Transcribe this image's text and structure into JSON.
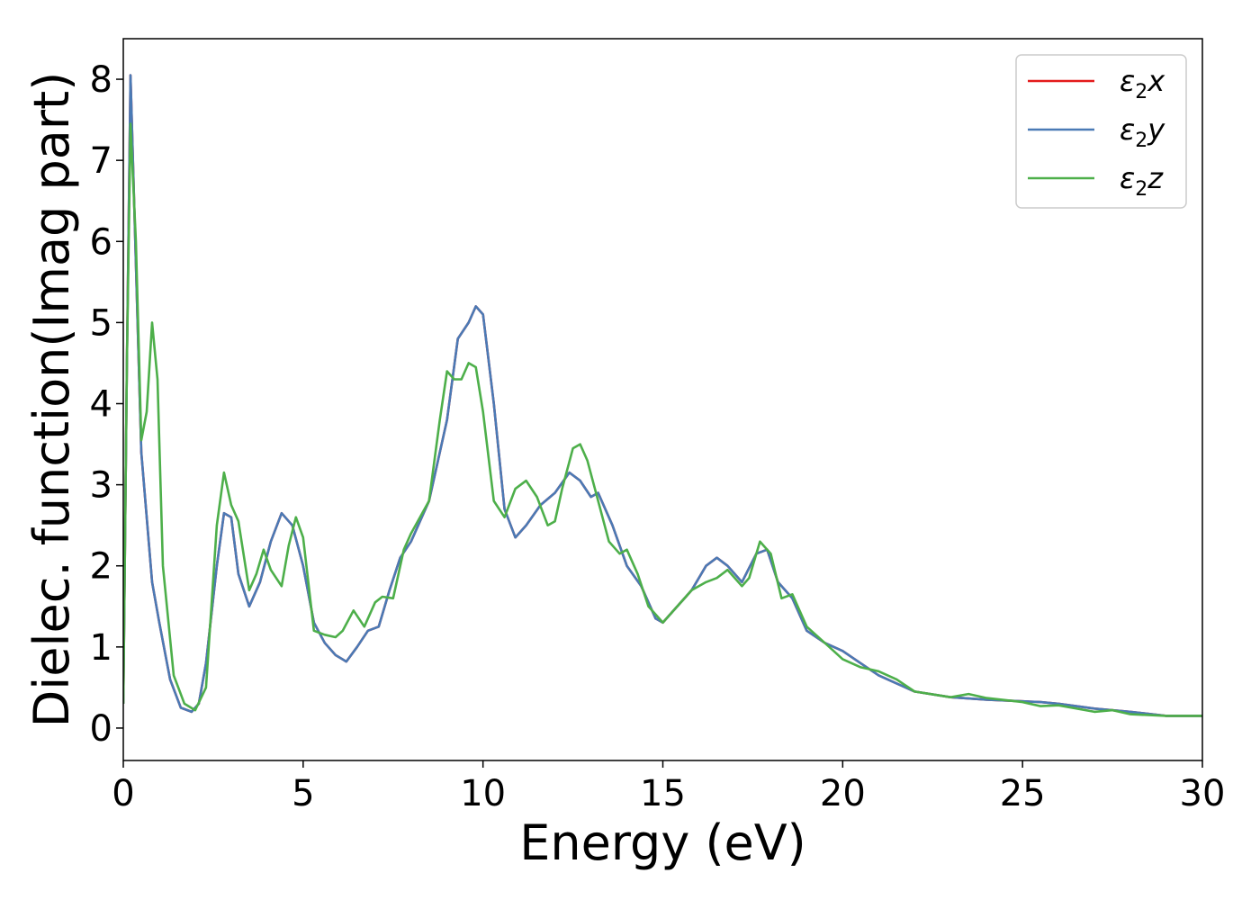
{
  "chart_data": {
    "type": "line",
    "title": "",
    "xlabel": "Energy (eV)",
    "ylabel": "Dielec. function(Imag part)",
    "xlim": [
      0,
      30
    ],
    "ylim": [
      -0.4,
      8.5
    ],
    "xticks": [
      0,
      5,
      10,
      15,
      20,
      25,
      30
    ],
    "yticks": [
      0,
      1,
      2,
      3,
      4,
      5,
      6,
      7,
      8
    ],
    "grid": false,
    "legend_position": "top-right",
    "series": [
      {
        "name": "ε2x",
        "legend_main": "ε",
        "legend_sub": "2",
        "legend_suffix": "x",
        "color": "#e41a1c",
        "x": [
          0,
          0.1,
          0.2,
          0.3,
          0.5,
          0.8,
          1.0,
          1.3,
          1.6,
          1.9,
          2.1,
          2.3,
          2.6,
          2.8,
          3.0,
          3.2,
          3.5,
          3.8,
          4.1,
          4.4,
          4.7,
          5.0,
          5.3,
          5.6,
          5.9,
          6.2,
          6.5,
          6.8,
          7.1,
          7.4,
          7.7,
          8.0,
          8.5,
          9.0,
          9.3,
          9.6,
          9.8,
          10.0,
          10.3,
          10.6,
          10.9,
          11.2,
          11.6,
          12.0,
          12.4,
          12.7,
          13.0,
          13.2,
          13.6,
          14.0,
          14.4,
          14.8,
          15.0,
          15.4,
          15.8,
          16.2,
          16.5,
          16.8,
          17.2,
          17.6,
          17.9,
          18.2,
          18.6,
          19.0,
          19.5,
          20.0,
          20.5,
          21.0,
          21.5,
          22.0,
          23.0,
          24.0,
          25.0,
          25.5,
          26.0,
          27.0,
          28.0,
          29.0,
          30.0
        ],
        "values": [
          0.3,
          4.5,
          8.05,
          6.5,
          3.4,
          1.8,
          1.3,
          0.6,
          0.25,
          0.2,
          0.3,
          0.8,
          2.0,
          2.65,
          2.6,
          1.9,
          1.5,
          1.8,
          2.3,
          2.65,
          2.5,
          2.0,
          1.3,
          1.05,
          0.9,
          0.82,
          1.0,
          1.2,
          1.25,
          1.7,
          2.1,
          2.3,
          2.8,
          3.8,
          4.8,
          5.0,
          5.2,
          5.1,
          4.0,
          2.7,
          2.35,
          2.5,
          2.75,
          2.9,
          3.15,
          3.05,
          2.85,
          2.9,
          2.5,
          2.0,
          1.75,
          1.35,
          1.3,
          1.5,
          1.7,
          2.0,
          2.1,
          2.0,
          1.8,
          2.15,
          2.2,
          1.8,
          1.6,
          1.2,
          1.05,
          0.95,
          0.8,
          0.65,
          0.55,
          0.45,
          0.38,
          0.35,
          0.33,
          0.32,
          0.3,
          0.24,
          0.2,
          0.15,
          0.15
        ]
      },
      {
        "name": "ε2y",
        "legend_main": "ε",
        "legend_sub": "2",
        "legend_suffix": "y",
        "color": "#4a7ab5",
        "x": [
          0,
          0.1,
          0.2,
          0.3,
          0.5,
          0.8,
          1.0,
          1.3,
          1.6,
          1.9,
          2.1,
          2.3,
          2.6,
          2.8,
          3.0,
          3.2,
          3.5,
          3.8,
          4.1,
          4.4,
          4.7,
          5.0,
          5.3,
          5.6,
          5.9,
          6.2,
          6.5,
          6.8,
          7.1,
          7.4,
          7.7,
          8.0,
          8.5,
          9.0,
          9.3,
          9.6,
          9.8,
          10.0,
          10.3,
          10.6,
          10.9,
          11.2,
          11.6,
          12.0,
          12.4,
          12.7,
          13.0,
          13.2,
          13.6,
          14.0,
          14.4,
          14.8,
          15.0,
          15.4,
          15.8,
          16.2,
          16.5,
          16.8,
          17.2,
          17.6,
          17.9,
          18.2,
          18.6,
          19.0,
          19.5,
          20.0,
          20.5,
          21.0,
          21.5,
          22.0,
          23.0,
          24.0,
          25.0,
          25.5,
          26.0,
          27.0,
          28.0,
          29.0,
          30.0
        ],
        "values": [
          0.3,
          4.5,
          8.05,
          6.5,
          3.4,
          1.8,
          1.3,
          0.6,
          0.25,
          0.2,
          0.3,
          0.8,
          2.0,
          2.65,
          2.6,
          1.9,
          1.5,
          1.8,
          2.3,
          2.65,
          2.5,
          2.0,
          1.3,
          1.05,
          0.9,
          0.82,
          1.0,
          1.2,
          1.25,
          1.7,
          2.1,
          2.3,
          2.8,
          3.8,
          4.8,
          5.0,
          5.2,
          5.1,
          4.0,
          2.7,
          2.35,
          2.5,
          2.75,
          2.9,
          3.15,
          3.05,
          2.85,
          2.9,
          2.5,
          2.0,
          1.75,
          1.35,
          1.3,
          1.5,
          1.7,
          2.0,
          2.1,
          2.0,
          1.8,
          2.15,
          2.2,
          1.8,
          1.6,
          1.2,
          1.05,
          0.95,
          0.8,
          0.65,
          0.55,
          0.45,
          0.38,
          0.35,
          0.33,
          0.32,
          0.3,
          0.24,
          0.2,
          0.15,
          0.15
        ]
      },
      {
        "name": "ε2z",
        "legend_main": "ε",
        "legend_sub": "2",
        "legend_suffix": "z",
        "color": "#4daf4a",
        "x": [
          0,
          0.1,
          0.2,
          0.35,
          0.5,
          0.65,
          0.8,
          0.95,
          1.1,
          1.4,
          1.7,
          2.0,
          2.3,
          2.6,
          2.8,
          3.0,
          3.2,
          3.5,
          3.7,
          3.9,
          4.1,
          4.4,
          4.6,
          4.8,
          5.0,
          5.3,
          5.6,
          5.9,
          6.1,
          6.4,
          6.7,
          7.0,
          7.2,
          7.5,
          7.8,
          8.0,
          8.5,
          8.8,
          9.0,
          9.2,
          9.4,
          9.6,
          9.8,
          10.0,
          10.3,
          10.6,
          10.9,
          11.2,
          11.5,
          11.8,
          12.0,
          12.2,
          12.5,
          12.7,
          12.9,
          13.2,
          13.5,
          13.8,
          14.0,
          14.3,
          14.6,
          15.0,
          15.4,
          15.8,
          16.2,
          16.5,
          16.8,
          17.2,
          17.4,
          17.7,
          18.0,
          18.3,
          18.6,
          19.0,
          19.5,
          20.0,
          20.5,
          21.0,
          21.5,
          22.0,
          23.0,
          23.5,
          24.0,
          25.0,
          25.5,
          26.0,
          27.0,
          27.5,
          28.0,
          29.0,
          30.0
        ],
        "values": [
          0.3,
          4.5,
          7.45,
          6.0,
          3.55,
          3.9,
          5.0,
          4.3,
          2.0,
          0.65,
          0.3,
          0.22,
          0.5,
          2.5,
          3.15,
          2.75,
          2.55,
          1.7,
          1.9,
          2.2,
          1.95,
          1.75,
          2.25,
          2.6,
          2.35,
          1.2,
          1.15,
          1.12,
          1.2,
          1.45,
          1.25,
          1.55,
          1.62,
          1.6,
          2.2,
          2.4,
          2.8,
          3.8,
          4.4,
          4.3,
          4.3,
          4.5,
          4.45,
          3.9,
          2.8,
          2.6,
          2.95,
          3.05,
          2.85,
          2.5,
          2.55,
          2.95,
          3.45,
          3.5,
          3.3,
          2.8,
          2.3,
          2.15,
          2.2,
          1.9,
          1.5,
          1.3,
          1.5,
          1.7,
          1.8,
          1.85,
          1.95,
          1.75,
          1.85,
          2.3,
          2.15,
          1.6,
          1.65,
          1.25,
          1.05,
          0.85,
          0.75,
          0.7,
          0.6,
          0.45,
          0.38,
          0.42,
          0.37,
          0.32,
          0.27,
          0.28,
          0.2,
          0.22,
          0.17,
          0.15,
          0.15
        ]
      }
    ]
  }
}
